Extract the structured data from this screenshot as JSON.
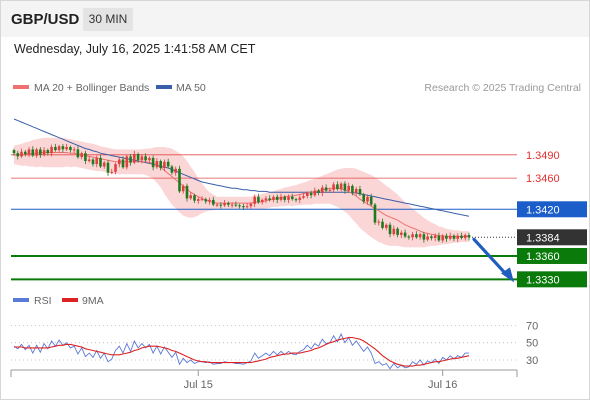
{
  "header": {
    "symbol": "GBP/USD",
    "interval": "30 MIN"
  },
  "timestamp": "Wednesday, July 16, 2025 1:41:58 AM CET",
  "legend": {
    "ma20_label": "MA 20 + Bollinger Bands",
    "ma50_label": "MA 50",
    "copyright": "Research © 2025 Trading Central",
    "rsi_label": "RSI",
    "rsi_ma_label": "9MA"
  },
  "colors": {
    "bull": "#e04040",
    "bear": "#1e7a1e",
    "ma20": "#f07070",
    "bollinger_fill": "#fbd6d6",
    "ma50": "#3a5fa8",
    "resistance": "#e03030",
    "pivot": "#1b5ec9",
    "support": "#0a7a0a",
    "last_price": "#333333",
    "rsi": "#5b79d6",
    "rsi_ma": "#dd2222",
    "arrow": "#1f5dbf"
  },
  "chart_data": [
    {
      "type": "candlestick",
      "title": "",
      "y_range": [
        1.3315,
        1.3545
      ],
      "x_ticks": [
        "Jul 15",
        "Jul 16"
      ],
      "levels": [
        {
          "kind": "resistance",
          "value": 1.349,
          "label": "1.3490"
        },
        {
          "kind": "resistance",
          "value": 1.346,
          "label": "1.3460"
        },
        {
          "kind": "pivot",
          "value": 1.342,
          "label": "1.3420"
        },
        {
          "kind": "last",
          "value": 1.3384,
          "label": "1.3384"
        },
        {
          "kind": "support",
          "value": 1.336,
          "label": "1.3360"
        },
        {
          "kind": "support",
          "value": 1.333,
          "label": "1.3330"
        }
      ],
      "forecast": {
        "direction": "down",
        "from": 1.3384,
        "to": 1.333
      },
      "close": [
        1.3492,
        1.3488,
        1.3494,
        1.3491,
        1.3497,
        1.3489,
        1.3497,
        1.349,
        1.3496,
        1.3492,
        1.35,
        1.3496,
        1.3501,
        1.3497,
        1.35,
        1.3496,
        1.3497,
        1.3487,
        1.3492,
        1.3482,
        1.3484,
        1.3478,
        1.3486,
        1.3475,
        1.348,
        1.3467,
        1.3468,
        1.3478,
        1.3484,
        1.3474,
        1.3488,
        1.348,
        1.3491,
        1.3483,
        1.3488,
        1.3483,
        1.3486,
        1.3474,
        1.3482,
        1.3473,
        1.3481,
        1.3475,
        1.3467,
        1.3472,
        1.3443,
        1.345,
        1.3434,
        1.3438,
        1.3431,
        1.3433,
        1.3433,
        1.343,
        1.3432,
        1.3426,
        1.3426,
        1.3425,
        1.3428,
        1.3426,
        1.3426,
        1.3425,
        1.3424,
        1.3423,
        1.3424,
        1.3427,
        1.3436,
        1.3429,
        1.3432,
        1.3434,
        1.3432,
        1.3436,
        1.3432,
        1.3436,
        1.3432,
        1.3436,
        1.3433,
        1.3432,
        1.3435,
        1.3437,
        1.3441,
        1.3438,
        1.3444,
        1.3441,
        1.3448,
        1.3444,
        1.3445,
        1.3452,
        1.3446,
        1.3453,
        1.3444,
        1.345,
        1.3441,
        1.3446,
        1.3439,
        1.343,
        1.3436,
        1.3426,
        1.3403,
        1.3404,
        1.3396,
        1.34,
        1.3388,
        1.3395,
        1.3387,
        1.339,
        1.3385,
        1.3384,
        1.3388,
        1.3384,
        1.3388,
        1.3381,
        1.3385,
        1.3383,
        1.3386,
        1.338,
        1.3386,
        1.3382,
        1.3386,
        1.3382,
        1.3386,
        1.3383,
        1.3387,
        1.3384
      ],
      "ma50": [
        1.3536,
        1.3534,
        1.3532,
        1.353,
        1.3528,
        1.3526,
        1.3524,
        1.3522,
        1.352,
        1.3518,
        1.3516,
        1.3514,
        1.3512,
        1.351,
        1.3508,
        1.3506,
        1.3504,
        1.3502,
        1.35,
        1.3498,
        1.3497,
        1.3495,
        1.3494,
        1.3492,
        1.3491,
        1.349,
        1.3489,
        1.3488,
        1.3487,
        1.3486,
        1.3485,
        1.3484,
        1.3483,
        1.3482,
        1.3481,
        1.348,
        1.3479,
        1.3478,
        1.3477,
        1.3475,
        1.3474,
        1.3473,
        1.3471,
        1.3469,
        1.3467,
        1.3465,
        1.3463,
        1.3461,
        1.3459,
        1.3457,
        1.3455,
        1.3454,
        1.3453,
        1.3452,
        1.3451,
        1.345,
        1.3449,
        1.3448,
        1.3447,
        1.3447,
        1.3446,
        1.3445,
        1.3445,
        1.3444,
        1.3444,
        1.3443,
        1.3443,
        1.3443,
        1.3442,
        1.3442,
        1.3442,
        1.3442,
        1.3442,
        1.3442,
        1.3442,
        1.3442,
        1.3442,
        1.3442,
        1.3442,
        1.3442,
        1.3442,
        1.3442,
        1.3442,
        1.3442,
        1.3442,
        1.3442,
        1.3442,
        1.3442,
        1.3442,
        1.3442,
        1.3441,
        1.3441,
        1.344,
        1.3439,
        1.3438,
        1.3437,
        1.3436,
        1.3435,
        1.3434,
        1.3433,
        1.3432,
        1.3431,
        1.343,
        1.3429,
        1.3428,
        1.3427,
        1.3426,
        1.3425,
        1.3424,
        1.3423,
        1.3422,
        1.3421,
        1.342,
        1.3419,
        1.3418,
        1.3417,
        1.3416,
        1.3415,
        1.3414,
        1.3413,
        1.3412,
        1.3411
      ],
      "ma20": [
        1.349,
        1.349,
        1.349,
        1.3491,
        1.3491,
        1.3492,
        1.3492,
        1.3493,
        1.3493,
        1.3493,
        1.3493,
        1.3493,
        1.3493,
        1.3493,
        1.3493,
        1.3492,
        1.3492,
        1.3491,
        1.349,
        1.3489,
        1.3488,
        1.3487,
        1.3486,
        1.3485,
        1.3484,
        1.3483,
        1.3482,
        1.3481,
        1.3481,
        1.3481,
        1.3481,
        1.3481,
        1.3481,
        1.3481,
        1.3481,
        1.3481,
        1.348,
        1.3479,
        1.3477,
        1.3474,
        1.347,
        1.3466,
        1.3462,
        1.3458,
        1.3454,
        1.345,
        1.3446,
        1.3442,
        1.3439,
        1.3436,
        1.3434,
        1.3432,
        1.343,
        1.3429,
        1.3428,
        1.3428,
        1.3428,
        1.3428,
        1.3428,
        1.3428,
        1.3428,
        1.3428,
        1.3428,
        1.3428,
        1.3429,
        1.3429,
        1.343,
        1.3431,
        1.3432,
        1.3433,
        1.3434,
        1.3435,
        1.3436,
        1.3437,
        1.3437,
        1.3438,
        1.3439,
        1.344,
        1.3441,
        1.3442,
        1.3443,
        1.3444,
        1.3445,
        1.3446,
        1.3447,
        1.3447,
        1.3447,
        1.3446,
        1.3445,
        1.3443,
        1.344,
        1.3437,
        1.3433,
        1.343,
        1.3427,
        1.3424,
        1.3421,
        1.3418,
        1.3415,
        1.3412,
        1.341,
        1.3408,
        1.3406,
        1.3403,
        1.34,
        1.3398,
        1.3396,
        1.3394,
        1.3392,
        1.339,
        1.3389,
        1.3388,
        1.3387,
        1.3386,
        1.3386,
        1.3385,
        1.3385,
        1.3385,
        1.3385,
        1.3385,
        1.3385,
        1.3385
      ],
      "bb_width": [
        0.0012,
        0.0013,
        0.0014,
        0.0015,
        0.0016,
        0.0017,
        0.0018,
        0.0018,
        0.0019,
        0.0019,
        0.0019,
        0.0019,
        0.0019,
        0.0019,
        0.0018,
        0.0018,
        0.0017,
        0.0017,
        0.0017,
        0.0017,
        0.0017,
        0.0017,
        0.0017,
        0.0016,
        0.0016,
        0.0016,
        0.0016,
        0.0016,
        0.0016,
        0.0016,
        0.0016,
        0.0016,
        0.0016,
        0.0016,
        0.0016,
        0.0017,
        0.0018,
        0.002,
        0.0023,
        0.0026,
        0.003,
        0.0033,
        0.0036,
        0.0037,
        0.0038,
        0.0038,
        0.0036,
        0.0033,
        0.0029,
        0.0024,
        0.0019,
        0.0015,
        0.0012,
        0.001,
        0.0008,
        0.0008,
        0.0008,
        0.0008,
        0.0008,
        0.0008,
        0.0008,
        0.0008,
        0.0008,
        0.0008,
        0.0009,
        0.0009,
        0.001,
        0.001,
        0.001,
        0.001,
        0.0011,
        0.0011,
        0.0012,
        0.0012,
        0.0013,
        0.0013,
        0.0014,
        0.0014,
        0.0015,
        0.0016,
        0.0016,
        0.0017,
        0.0018,
        0.0019,
        0.002,
        0.0022,
        0.0024,
        0.0026,
        0.0028,
        0.003,
        0.0033,
        0.0035,
        0.0037,
        0.0038,
        0.0039,
        0.004,
        0.004,
        0.004,
        0.0039,
        0.0038,
        0.0037,
        0.0035,
        0.0033,
        0.0031,
        0.0029,
        0.0027,
        0.0025,
        0.0023,
        0.0021,
        0.0019,
        0.0017,
        0.0015,
        0.0014,
        0.0012,
        0.0011,
        0.001,
        0.0009,
        0.0008,
        0.0008,
        0.0007,
        0.0007,
        0.0007
      ]
    },
    {
      "type": "line",
      "title": "",
      "y_ticks": [
        70,
        50,
        30
      ],
      "y_range": [
        15,
        82
      ],
      "series": [
        {
          "name": "RSI",
          "values": [
            46,
            43,
            48,
            42,
            47,
            38,
            47,
            39,
            49,
            43,
            52,
            46,
            53,
            47,
            50,
            44,
            46,
            37,
            44,
            34,
            38,
            33,
            41,
            32,
            38,
            28,
            31,
            41,
            46,
            38,
            49,
            40,
            52,
            44,
            49,
            44,
            48,
            38,
            46,
            37,
            45,
            39,
            33,
            39,
            25,
            32,
            27,
            30,
            26,
            28,
            28,
            27,
            28,
            25,
            26,
            26,
            28,
            27,
            27,
            26,
            26,
            25,
            27,
            29,
            38,
            32,
            35,
            38,
            35,
            40,
            36,
            40,
            36,
            40,
            37,
            36,
            40,
            42,
            47,
            43,
            49,
            46,
            54,
            49,
            50,
            58,
            51,
            60,
            50,
            56,
            47,
            52,
            46,
            40,
            45,
            38,
            26,
            28,
            24,
            26,
            20,
            26,
            21,
            24,
            21,
            22,
            28,
            25,
            30,
            24,
            29,
            27,
            31,
            26,
            33,
            30,
            35,
            31,
            35,
            33,
            38,
            38
          ]
        },
        {
          "name": "9MA",
          "values": [
            45,
            45,
            45,
            44,
            44,
            44,
            44,
            44,
            44,
            44,
            45,
            46,
            47,
            47,
            48,
            48,
            47,
            46,
            45,
            43,
            42,
            41,
            40,
            39,
            38,
            37,
            36,
            36,
            36,
            37,
            38,
            39,
            41,
            42,
            44,
            45,
            46,
            46,
            46,
            45,
            44,
            43,
            41,
            40,
            38,
            36,
            34,
            32,
            30,
            29,
            28,
            28,
            27,
            27,
            27,
            27,
            27,
            27,
            27,
            27,
            27,
            27,
            27,
            27,
            28,
            29,
            30,
            31,
            33,
            34,
            35,
            36,
            37,
            37,
            38,
            38,
            38,
            39,
            40,
            41,
            43,
            44,
            46,
            48,
            50,
            51,
            53,
            54,
            55,
            56,
            56,
            55,
            54,
            52,
            49,
            46,
            43,
            39,
            35,
            32,
            29,
            27,
            25,
            24,
            23,
            23,
            23,
            24,
            24,
            25,
            26,
            27,
            28,
            28,
            29,
            30,
            31,
            32,
            32,
            33,
            34,
            35
          ]
        }
      ]
    }
  ]
}
